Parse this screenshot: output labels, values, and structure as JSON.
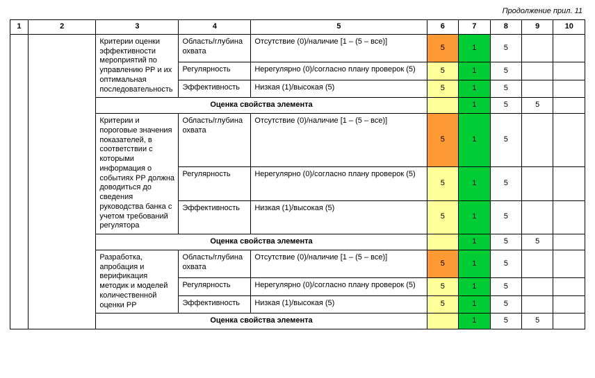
{
  "continuation_label": "Продолжение прил. 11",
  "headers": [
    "1",
    "2",
    "3",
    "4",
    "5",
    "6",
    "7",
    "8",
    "9",
    "10"
  ],
  "summary_label": "Оценка свойства элемента",
  "colors": {
    "orange": "#ff9933",
    "yellow": "#ffff99",
    "green": "#00cc33",
    "white": "#ffffff",
    "border": "#000000"
  },
  "sections": [
    {
      "criterion": "Критерии оценки эффективности мероприятий по управлению РР и их оптимальная последовательность",
      "rows": [
        {
          "c4": "Область/глубина охвата",
          "c5": "Отсутствие (0)/наличие [1 – (5 – все)]",
          "c6": "5",
          "c6_bg": "orange",
          "c7": "1",
          "c7_bg": "green",
          "c8": "5",
          "c9": "",
          "c10": ""
        },
        {
          "c4": "Регулярность",
          "c5": "Нерегулярно (0)/согласно плану проверок (5)",
          "c6": "5",
          "c6_bg": "yellow",
          "c7": "1",
          "c7_bg": "green",
          "c8": "5",
          "c9": "",
          "c10": ""
        },
        {
          "c4": "Эффективность",
          "c5": "Низкая (1)/высокая (5)",
          "c6": "5",
          "c6_bg": "yellow",
          "c7": "1",
          "c7_bg": "green",
          "c8": "5",
          "c9": "",
          "c10": ""
        }
      ],
      "summary": {
        "c6": "",
        "c6_bg": "yellow",
        "c7": "1",
        "c7_bg": "green",
        "c8": "5",
        "c9": "5",
        "c10": ""
      }
    },
    {
      "criterion": "Критерии и пороговые значения показателей, в соответствии с которыми информация о событиях РР должна доводиться до сведения руководства банка с учетом требований регулятора",
      "rows": [
        {
          "c4": "Область/глубина охвата",
          "c5": "Отсутствие (0)/наличие [1 – (5 – все)]",
          "c6": "5",
          "c6_bg": "orange",
          "c7": "1",
          "c7_bg": "green",
          "c8": "5",
          "c9": "",
          "c10": ""
        },
        {
          "c4": "Регулярность",
          "c5": "Нерегулярно (0)/согласно плану проверок (5)",
          "c6": "5",
          "c6_bg": "yellow",
          "c7": "1",
          "c7_bg": "green",
          "c8": "5",
          "c9": "",
          "c10": ""
        },
        {
          "c4": "Эффективность",
          "c5": "Низкая (1)/высокая (5)",
          "c6": "5",
          "c6_bg": "yellow",
          "c7": "1",
          "c7_bg": "green",
          "c8": "5",
          "c9": "",
          "c10": ""
        }
      ],
      "summary": {
        "c6": "",
        "c6_bg": "yellow",
        "c7": "1",
        "c7_bg": "green",
        "c8": "5",
        "c9": "5",
        "c10": ""
      }
    },
    {
      "criterion": "Разработка, апробация и верификация методик и моделей количественной оценки РР",
      "rows": [
        {
          "c4": "Область/глубина охвата",
          "c5": "Отсутствие (0)/наличие [1 – (5 – все)]",
          "c6": "5",
          "c6_bg": "orange",
          "c7": "1",
          "c7_bg": "green",
          "c8": "5",
          "c9": "",
          "c10": ""
        },
        {
          "c4": "Регулярность",
          "c5": "Нерегулярно (0)/согласно плану проверок (5)",
          "c6": "5",
          "c6_bg": "yellow",
          "c7": "1",
          "c7_bg": "green",
          "c8": "5",
          "c9": "",
          "c10": ""
        },
        {
          "c4": "Эффективность",
          "c5": "Низкая (1)/высокая (5)",
          "c6": "5",
          "c6_bg": "yellow",
          "c7": "1",
          "c7_bg": "green",
          "c8": "5",
          "c9": "",
          "c10": ""
        }
      ],
      "summary": {
        "c6": "",
        "c6_bg": "yellow",
        "c7": "1",
        "c7_bg": "green",
        "c8": "5",
        "c9": "5",
        "c10": ""
      }
    }
  ]
}
